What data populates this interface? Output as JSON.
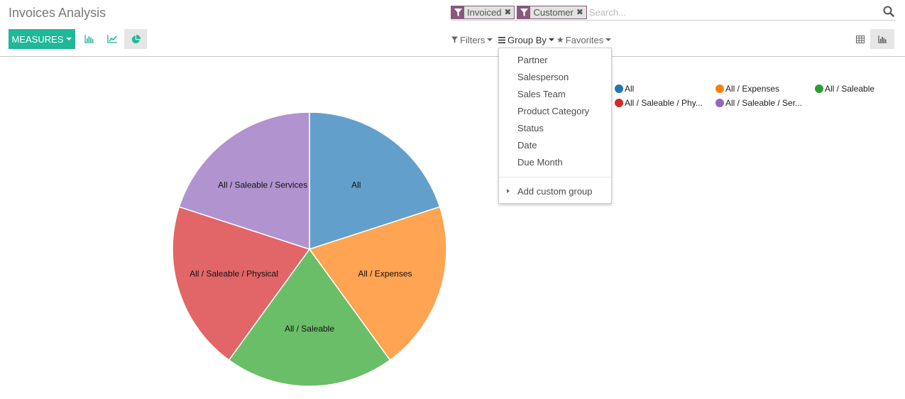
{
  "title": "Invoices Analysis",
  "search": {
    "facets": [
      {
        "label": "Invoiced"
      },
      {
        "label": "Customer"
      }
    ],
    "placeholder": "Search..."
  },
  "toolbar": {
    "measures_label": "MEASURES",
    "chart_types": [
      "bar",
      "line",
      "pie"
    ],
    "active_chart_type": "pie",
    "filters_label": "Filters",
    "groupby_label": "Group By",
    "favorites_label": "Favorites",
    "views": [
      "pivot",
      "graph"
    ],
    "active_view": "graph"
  },
  "groupby_menu": {
    "items": [
      "Partner",
      "Salesperson",
      "Sales Team",
      "Product Category",
      "Status",
      "Date",
      "Due Month"
    ],
    "custom_label": "Add custom group"
  },
  "legend": [
    {
      "label": "All",
      "color": "#1f77b4"
    },
    {
      "label": "All / Expenses",
      "color": "#ff7f0e"
    },
    {
      "label": "All / Saleable",
      "color": "#2ca02c"
    },
    {
      "label": "All / Saleable / Phy...",
      "color": "#d62728"
    },
    {
      "label": "All / Saleable / Ser...",
      "color": "#9467bd"
    }
  ],
  "chart_data": {
    "type": "pie",
    "labels": [
      "All",
      "All / Expenses",
      "All / Saleable",
      "All / Saleable / Physical",
      "All / Saleable / Services"
    ],
    "values": [
      1,
      1,
      1,
      1,
      1
    ],
    "colors": [
      "#62a0cb",
      "#fea452",
      "#6abe68",
      "#e26667",
      "#b193cf"
    ]
  }
}
